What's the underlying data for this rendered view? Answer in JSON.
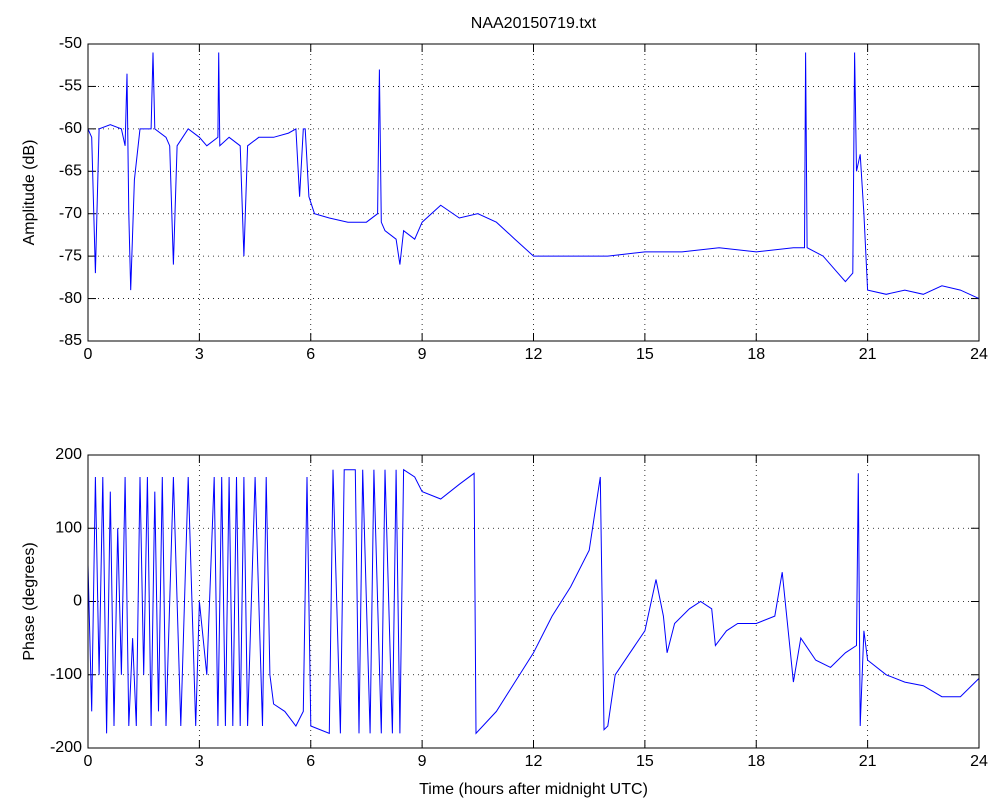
{
  "chart_data": [
    {
      "type": "line",
      "title": "NAA20150719.txt",
      "ylabel": "Amplitude (dB)",
      "color": "#0000ff",
      "grid": true,
      "xlim": [
        0,
        24
      ],
      "xticks": [
        0,
        3,
        6,
        9,
        12,
        15,
        18,
        21,
        24
      ],
      "ylim": [
        -85,
        -50
      ],
      "yticks": [
        -85,
        -80,
        -75,
        -70,
        -65,
        -60,
        -55,
        -50
      ],
      "x": [
        0,
        0.1,
        0.2,
        0.3,
        0.6,
        0.9,
        1.0,
        1.05,
        1.1,
        1.15,
        1.25,
        1.4,
        1.7,
        1.75,
        1.8,
        2.1,
        2.2,
        2.3,
        2.4,
        2.7,
        3.0,
        3.2,
        3.5,
        3.52,
        3.55,
        3.8,
        4.1,
        4.2,
        4.3,
        4.6,
        5.0,
        5.4,
        5.6,
        5.7,
        5.8,
        5.85,
        5.95,
        6.1,
        6.5,
        7.0,
        7.5,
        7.8,
        7.85,
        7.9,
        8.0,
        8.3,
        8.4,
        8.5,
        8.8,
        9.0,
        9.5,
        10.0,
        10.5,
        11.0,
        11.5,
        12,
        13,
        14,
        15,
        16,
        17,
        18,
        19,
        19.3,
        19.33,
        19.37,
        19.8,
        20.2,
        20.4,
        20.6,
        20.65,
        20.7,
        20.8,
        20.9,
        21.0,
        21.5,
        22,
        22.5,
        23,
        23.5,
        24
      ],
      "values": [
        -60,
        -61,
        -77,
        -60,
        -59.5,
        -60,
        -62,
        -53.5,
        -70,
        -79,
        -66,
        -60,
        -60,
        -51,
        -60,
        -61,
        -62,
        -76,
        -62,
        -60,
        -61,
        -62,
        -61,
        -51,
        -62,
        -61,
        -62,
        -75,
        -62,
        -61,
        -61,
        -60.5,
        -60,
        -68,
        -60,
        -60,
        -68,
        -70,
        -70.5,
        -71,
        -71,
        -70,
        -53,
        -71,
        -72,
        -73,
        -76,
        -72,
        -73,
        -71,
        -69,
        -70.5,
        -70,
        -71,
        -73,
        -75,
        -75,
        -75,
        -74.5,
        -74.5,
        -74,
        -74.5,
        -74,
        -74,
        -51,
        -74,
        -75,
        -77,
        -78,
        -77,
        -51,
        -65,
        -63,
        -70,
        -79,
        -79.5,
        -79,
        -79.5,
        -78.5,
        -79,
        -80
      ]
    },
    {
      "type": "line",
      "xlabel": "Time (hours after midnight UTC)",
      "ylabel": "Phase (degrees)",
      "color": "#0000ff",
      "grid": true,
      "xlim": [
        0,
        24
      ],
      "xticks": [
        0,
        3,
        6,
        9,
        12,
        15,
        18,
        21,
        24
      ],
      "ylim": [
        -200,
        200
      ],
      "yticks": [
        -200,
        -100,
        0,
        100,
        200
      ],
      "x": [
        0,
        0.1,
        0.2,
        0.3,
        0.4,
        0.5,
        0.6,
        0.7,
        0.8,
        0.9,
        1.0,
        1.1,
        1.2,
        1.3,
        1.4,
        1.5,
        1.6,
        1.7,
        1.8,
        1.9,
        2.0,
        2.1,
        2.3,
        2.5,
        2.7,
        2.9,
        3.0,
        3.2,
        3.4,
        3.5,
        3.6,
        3.7,
        3.8,
        3.9,
        4.0,
        4.1,
        4.2,
        4.3,
        4.5,
        4.7,
        4.8,
        4.9,
        5.0,
        5.3,
        5.6,
        5.8,
        5.9,
        6.0,
        6.5,
        6.6,
        6.8,
        6.9,
        7.2,
        7.3,
        7.4,
        7.6,
        7.7,
        7.9,
        8.0,
        8.2,
        8.3,
        8.4,
        8.5,
        8.8,
        9.0,
        9.5,
        10.0,
        10.4,
        10.45,
        11,
        11.5,
        12,
        12.5,
        13,
        13.5,
        13.8,
        13.9,
        14.0,
        14.2,
        14.6,
        15.0,
        15.3,
        15.5,
        15.6,
        15.8,
        16.2,
        16.5,
        16.8,
        16.9,
        17.2,
        17.5,
        18,
        18.5,
        18.7,
        18.9,
        19.0,
        19.2,
        19.6,
        20.0,
        20.4,
        20.7,
        20.75,
        20.8,
        20.9,
        21.0,
        21.5,
        22,
        22.5,
        23,
        23.5,
        24
      ],
      "values": [
        50,
        -150,
        170,
        -100,
        170,
        -180,
        150,
        -170,
        100,
        -100,
        170,
        -170,
        -50,
        -170,
        170,
        -100,
        170,
        -170,
        150,
        -150,
        170,
        -170,
        170,
        -170,
        170,
        -170,
        0,
        -100,
        170,
        -170,
        170,
        -170,
        170,
        -170,
        170,
        -170,
        170,
        -170,
        170,
        -170,
        170,
        -100,
        -140,
        -150,
        -170,
        -150,
        170,
        -170,
        -180,
        180,
        -180,
        180,
        180,
        -180,
        180,
        -180,
        180,
        -180,
        180,
        -180,
        180,
        -180,
        180,
        170,
        150,
        140,
        160,
        175,
        -180,
        -150,
        -110,
        -70,
        -20,
        20,
        70,
        170,
        -175,
        -170,
        -100,
        -70,
        -40,
        30,
        -20,
        -70,
        -30,
        -10,
        0,
        -10,
        -60,
        -40,
        -30,
        -30,
        -20,
        40,
        -60,
        -110,
        -50,
        -80,
        -90,
        -70,
        -60,
        175,
        -170,
        -40,
        -80,
        -100,
        -110,
        -115,
        -130,
        -130,
        -105
      ]
    }
  ]
}
